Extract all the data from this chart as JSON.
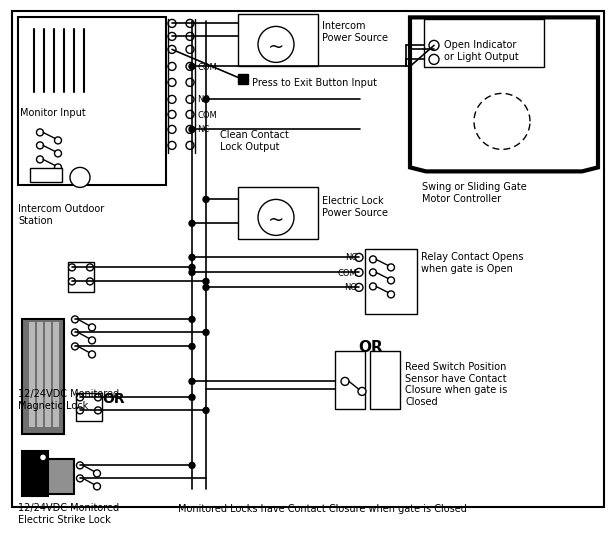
{
  "bg_color": "#ffffff",
  "line_color": "#000000",
  "labels": {
    "monitor_input": "Monitor Input",
    "intercom_outdoor": "Intercom Outdoor\nStation",
    "intercom_power": "Intercom\nPower Source",
    "press_to_exit": "Press to Exit Button Input",
    "clean_contact": "Clean Contact\nLock Output",
    "electric_lock_power": "Electric Lock\nPower Source",
    "mag_lock": "12/24VDC Monitored\nMagnetic Lock",
    "strike_lock": "12/24VDC Monitored\nElectric Strike Lock",
    "swing_gate": "Swing or Sliding Gate\nMotor Controller",
    "open_indicator": "Open Indicator\nor Light Output",
    "relay_contact": "Relay Contact Opens\nwhen gate is Open",
    "reed_switch": "Reed Switch Position\nSensor have Contact\nClosure when gate is\nClosed",
    "monitored_locks": "Monitored Locks have Contact Closure when gate is Closed",
    "OR1": "OR",
    "OR2": "OR"
  }
}
